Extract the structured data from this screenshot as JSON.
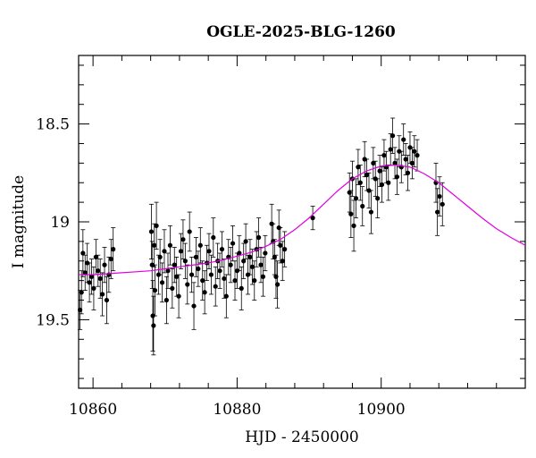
{
  "chart_data": {
    "type": "scatter",
    "title": "OGLE-2025-BLG-1260",
    "xlabel": "HJD - 2450000",
    "ylabel": "I magnitude",
    "xlim": [
      10858,
      10920
    ],
    "ylim": [
      19.85,
      18.15
    ],
    "y_inverted": true,
    "grid": false,
    "colors": {
      "points": "#000000",
      "model": "#e000e0",
      "axes": "#000000"
    },
    "x_ticks": [
      {
        "value": 10860,
        "label": "10860"
      },
      {
        "value": 10880,
        "label": "10880"
      },
      {
        "value": 10900,
        "label": "10900"
      }
    ],
    "y_ticks": [
      {
        "value": 18.5,
        "label": "18.5"
      },
      {
        "value": 19.0,
        "label": "19"
      },
      {
        "value": 19.5,
        "label": "19.5"
      }
    ],
    "series": [
      {
        "kind": "points-with-errors",
        "points": [
          [
            10858.2,
            19.45,
            0.1
          ],
          [
            10858.4,
            19.36,
            0.11
          ],
          [
            10858.6,
            19.16,
            0.12
          ],
          [
            10858.9,
            19.26,
            0.09
          ],
          [
            10859.2,
            19.21,
            0.1
          ],
          [
            10859.5,
            19.31,
            0.1
          ],
          [
            10859.8,
            19.28,
            0.09
          ],
          [
            10860.1,
            19.34,
            0.11
          ],
          [
            10860.4,
            19.18,
            0.09
          ],
          [
            10860.7,
            19.25,
            0.08
          ],
          [
            10861.0,
            19.29,
            0.1
          ],
          [
            10861.3,
            19.37,
            0.11
          ],
          [
            10861.6,
            19.22,
            0.09
          ],
          [
            10861.9,
            19.4,
            0.12
          ],
          [
            10862.2,
            19.27,
            0.09
          ],
          [
            10862.5,
            19.19,
            0.1
          ],
          [
            10862.8,
            19.14,
            0.11
          ],
          [
            10868.1,
            19.05,
            0.14
          ],
          [
            10868.2,
            19.22,
            0.12
          ],
          [
            10868.3,
            19.48,
            0.18
          ],
          [
            10868.4,
            19.53,
            0.15
          ],
          [
            10868.5,
            19.12,
            0.11
          ],
          [
            10868.6,
            19.35,
            0.13
          ],
          [
            10868.8,
            19.02,
            0.12
          ],
          [
            10869.1,
            19.27,
            0.1
          ],
          [
            10869.3,
            19.18,
            0.09
          ],
          [
            10869.6,
            19.31,
            0.1
          ],
          [
            10869.9,
            19.15,
            0.11
          ],
          [
            10870.2,
            19.4,
            0.12
          ],
          [
            10870.4,
            19.25,
            0.09
          ],
          [
            10870.7,
            19.12,
            0.1
          ],
          [
            10871.0,
            19.34,
            0.1
          ],
          [
            10871.3,
            19.22,
            0.09
          ],
          [
            10871.6,
            19.28,
            0.1
          ],
          [
            10871.9,
            19.38,
            0.11
          ],
          [
            10872.2,
            19.15,
            0.09
          ],
          [
            10872.5,
            19.09,
            0.1
          ],
          [
            10872.8,
            19.2,
            0.09
          ],
          [
            10873.1,
            19.32,
            0.1
          ],
          [
            10873.4,
            19.05,
            0.1
          ],
          [
            10873.7,
            19.27,
            0.09
          ],
          [
            10874.0,
            19.43,
            0.12
          ],
          [
            10874.3,
            19.18,
            0.1
          ],
          [
            10874.6,
            19.24,
            0.09
          ],
          [
            10874.9,
            19.12,
            0.09
          ],
          [
            10875.2,
            19.3,
            0.1
          ],
          [
            10875.5,
            19.36,
            0.11
          ],
          [
            10875.8,
            19.21,
            0.09
          ],
          [
            10876.1,
            19.15,
            0.09
          ],
          [
            10876.4,
            19.27,
            0.1
          ],
          [
            10876.7,
            19.08,
            0.1
          ],
          [
            10877.0,
            19.33,
            0.1
          ],
          [
            10877.3,
            19.2,
            0.09
          ],
          [
            10877.6,
            19.25,
            0.09
          ],
          [
            10877.9,
            19.14,
            0.09
          ],
          [
            10878.2,
            19.29,
            0.1
          ],
          [
            10878.5,
            19.38,
            0.11
          ],
          [
            10878.8,
            19.18,
            0.09
          ],
          [
            10879.1,
            19.22,
            0.09
          ],
          [
            10879.4,
            19.11,
            0.09
          ],
          [
            10879.7,
            19.3,
            0.1
          ],
          [
            10880.0,
            19.25,
            0.09
          ],
          [
            10880.3,
            19.16,
            0.09
          ],
          [
            10880.6,
            19.34,
            0.11
          ],
          [
            10880.9,
            19.2,
            0.09
          ],
          [
            10881.2,
            19.1,
            0.09
          ],
          [
            10881.5,
            19.27,
            0.1
          ],
          [
            10881.8,
            19.18,
            0.09
          ],
          [
            10882.1,
            19.23,
            0.09
          ],
          [
            10882.4,
            19.3,
            0.1
          ],
          [
            10882.7,
            19.14,
            0.09
          ],
          [
            10883.0,
            19.08,
            0.1
          ],
          [
            10883.3,
            19.22,
            0.09
          ],
          [
            10883.6,
            19.28,
            0.1
          ],
          [
            10883.9,
            19.16,
            0.09
          ],
          [
            10884.8,
            19.01,
            0.1
          ],
          [
            10885.0,
            19.1,
            0.09
          ],
          [
            10885.2,
            19.18,
            0.09
          ],
          [
            10885.4,
            19.28,
            0.11
          ],
          [
            10885.6,
            19.32,
            0.12
          ],
          [
            10885.8,
            19.03,
            0.09
          ],
          [
            10886.0,
            19.12,
            0.09
          ],
          [
            10886.3,
            19.2,
            0.1
          ],
          [
            10886.6,
            19.14,
            0.09
          ],
          [
            10890.5,
            18.98,
            0.06
          ],
          [
            10895.6,
            18.85,
            0.1
          ],
          [
            10895.8,
            18.96,
            0.12
          ],
          [
            10896.0,
            18.78,
            0.09
          ],
          [
            10896.2,
            19.02,
            0.13
          ],
          [
            10896.5,
            18.88,
            0.1
          ],
          [
            10896.8,
            18.72,
            0.09
          ],
          [
            10897.1,
            18.8,
            0.09
          ],
          [
            10897.4,
            18.92,
            0.1
          ],
          [
            10897.7,
            18.68,
            0.09
          ],
          [
            10898.0,
            18.76,
            0.08
          ],
          [
            10898.3,
            18.84,
            0.09
          ],
          [
            10898.6,
            18.95,
            0.11
          ],
          [
            10898.9,
            18.7,
            0.08
          ],
          [
            10899.2,
            18.78,
            0.09
          ],
          [
            10899.5,
            18.88,
            0.1
          ],
          [
            10899.8,
            18.74,
            0.08
          ],
          [
            10900.1,
            18.81,
            0.09
          ],
          [
            10900.4,
            18.66,
            0.08
          ],
          [
            10900.7,
            18.72,
            0.08
          ],
          [
            10901.0,
            18.8,
            0.09
          ],
          [
            10901.3,
            18.63,
            0.08
          ],
          [
            10901.6,
            18.56,
            0.09
          ],
          [
            10901.9,
            18.7,
            0.08
          ],
          [
            10902.2,
            18.77,
            0.09
          ],
          [
            10902.5,
            18.64,
            0.08
          ],
          [
            10902.8,
            18.72,
            0.08
          ],
          [
            10903.1,
            18.58,
            0.08
          ],
          [
            10903.4,
            18.68,
            0.08
          ],
          [
            10903.7,
            18.75,
            0.09
          ],
          [
            10904.0,
            18.62,
            0.08
          ],
          [
            10904.3,
            18.7,
            0.08
          ],
          [
            10904.6,
            18.64,
            0.08
          ],
          [
            10905.0,
            18.66,
            0.08
          ],
          [
            10907.6,
            18.8,
            0.1
          ],
          [
            10907.8,
            18.95,
            0.12
          ],
          [
            10908.1,
            18.87,
            0.1
          ],
          [
            10908.5,
            18.91,
            0.11
          ]
        ]
      },
      {
        "kind": "model-curve",
        "name": "",
        "x": [
          10858,
          10860,
          10862,
          10864,
          10866,
          10868,
          10870,
          10872,
          10874,
          10876,
          10878,
          10880,
          10882,
          10884,
          10886,
          10888,
          10890,
          10892,
          10894,
          10896,
          10898,
          10900,
          10902,
          10904,
          10906,
          10908,
          10910,
          10912,
          10914,
          10916,
          10918,
          10920
        ],
        "y": [
          19.27,
          19.27,
          19.265,
          19.26,
          19.255,
          19.25,
          19.24,
          19.23,
          19.22,
          19.21,
          19.195,
          19.175,
          19.155,
          19.125,
          19.09,
          19.04,
          18.98,
          18.91,
          18.84,
          18.78,
          18.74,
          18.715,
          18.71,
          18.72,
          18.755,
          18.8,
          18.86,
          18.92,
          18.98,
          19.035,
          19.08,
          19.12
        ]
      }
    ]
  }
}
